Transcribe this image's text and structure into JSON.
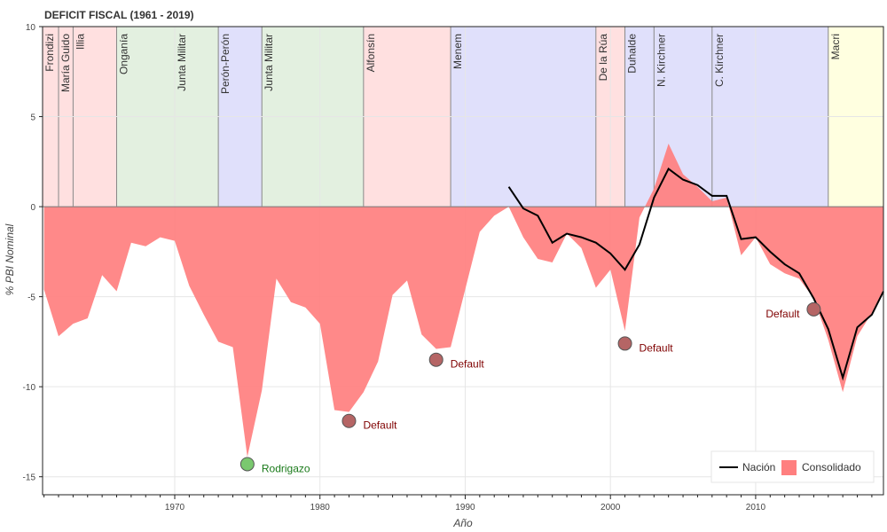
{
  "chart_data": {
    "type": "area",
    "title": "DEFICIT FISCAL (1961 - 2019)",
    "xlabel": "Año",
    "ylabel": "% PBI Nominal",
    "xlim": [
      1960.9,
      2018.8
    ],
    "ylim": [
      -16,
      10
    ],
    "xticks": [
      1970,
      1980,
      1990,
      2000,
      2010
    ],
    "yticks": [
      10,
      5,
      0,
      -5,
      -10,
      -15
    ],
    "grid": true,
    "legend_position": "bottom-right",
    "colors": {
      "consolidado": "#ff7f7f",
      "nacion": "#000000",
      "period_red": "#ffe0e0",
      "period_green": "#e3f0e0",
      "period_blue": "#e0e0fb",
      "period_yellow": "#ffffe0",
      "default_marker": "#b56565",
      "rodrigazo_marker": "#7ac86f",
      "default_text": "#7f0000",
      "rodrigazo_text": "#1a7a1a"
    },
    "periods": [
      {
        "name": "Frondizi",
        "start": 1960.9,
        "end": 1962.0,
        "color": "red"
      },
      {
        "name": "María Guido",
        "start": 1962.0,
        "end": 1963.0,
        "color": "red"
      },
      {
        "name": "Illia",
        "start": 1963.0,
        "end": 1966.0,
        "color": "red"
      },
      {
        "name": "Onganía",
        "start": 1966.0,
        "end": 1970.0,
        "color": "green"
      },
      {
        "name": "Junta Militar",
        "start": 1970.0,
        "end": 1973.0,
        "color": "green"
      },
      {
        "name": "Perón-Perón",
        "start": 1973.0,
        "end": 1976.0,
        "color": "blue"
      },
      {
        "name": "Junta Militar",
        "start": 1976.0,
        "end": 1983.0,
        "color": "green"
      },
      {
        "name": "Alfonsín",
        "start": 1983.0,
        "end": 1989.0,
        "color": "red"
      },
      {
        "name": "Menem",
        "start": 1989.0,
        "end": 1999.0,
        "color": "blue"
      },
      {
        "name": "De la Rúa",
        "start": 1999.0,
        "end": 2001.0,
        "color": "red"
      },
      {
        "name": "Duhalde",
        "start": 2001.0,
        "end": 2003.0,
        "color": "blue"
      },
      {
        "name": "N. Kirchner",
        "start": 2003.0,
        "end": 2007.0,
        "color": "blue"
      },
      {
        "name": "C. Kirchner",
        "start": 2007.0,
        "end": 2015.0,
        "color": "blue"
      },
      {
        "name": "Macri",
        "start": 2015.0,
        "end": 2018.8,
        "color": "yellow"
      }
    ],
    "series": [
      {
        "name": "Consolidado",
        "type": "area",
        "x": [
          1961,
          1962,
          1963,
          1964,
          1965,
          1966,
          1967,
          1968,
          1969,
          1970,
          1971,
          1972,
          1973,
          1974,
          1975,
          1976,
          1977,
          1978,
          1979,
          1980,
          1981,
          1982,
          1983,
          1984,
          1985,
          1986,
          1987,
          1988,
          1989,
          1990,
          1991,
          1992,
          1993,
          1994,
          1995,
          1996,
          1997,
          1998,
          1999,
          2000,
          2001,
          2002,
          2003,
          2004,
          2005,
          2006,
          2007,
          2008,
          2009,
          2010,
          2011,
          2012,
          2013,
          2014,
          2015,
          2016,
          2017,
          2018,
          2018.8
        ],
        "y": [
          -4.6,
          -7.2,
          -6.5,
          -6.2,
          -3.8,
          -4.7,
          -2.0,
          -2.2,
          -1.7,
          -1.9,
          -4.4,
          -6.0,
          -7.5,
          -7.8,
          -13.9,
          -10.2,
          -4.0,
          -5.3,
          -5.6,
          -6.5,
          -11.3,
          -11.4,
          -10.3,
          -8.6,
          -4.9,
          -4.1,
          -7.1,
          -7.9,
          -7.8,
          -4.6,
          -1.4,
          -0.5,
          0.0,
          -1.7,
          -2.9,
          -3.1,
          -1.5,
          -2.3,
          -4.5,
          -3.5,
          -6.9,
          -0.6,
          1.0,
          3.5,
          1.8,
          1.1,
          0.3,
          0.5,
          -2.7,
          -1.7,
          -3.2,
          -3.7,
          -4.0,
          -5.1,
          -7.4,
          -10.3,
          -7.2,
          -5.9,
          -4.6
        ]
      },
      {
        "name": "Nación",
        "type": "line",
        "x": [
          1993,
          1994,
          1995,
          1996,
          1997,
          1998,
          1999,
          2000,
          2001,
          2002,
          2003,
          2004,
          2005,
          2006,
          2007,
          2008,
          2009,
          2010,
          2011,
          2012,
          2013,
          2014,
          2015,
          2016,
          2017,
          2018,
          2018.8
        ],
        "y": [
          1.1,
          -0.1,
          -0.5,
          -2.0,
          -1.5,
          -1.7,
          -2.0,
          -2.6,
          -3.5,
          -2.1,
          0.5,
          2.1,
          1.5,
          1.2,
          0.6,
          0.6,
          -1.8,
          -1.7,
          -2.5,
          -3.2,
          -3.7,
          -5.1,
          -6.8,
          -9.5,
          -6.7,
          -6.0,
          -4.7
        ]
      }
    ],
    "annotations": [
      {
        "label": "Rodrigazo",
        "x": 1975,
        "y": -14.3,
        "kind": "rodrigazo"
      },
      {
        "label": "Default",
        "x": 1982,
        "y": -11.9,
        "kind": "default",
        "text_side": "right"
      },
      {
        "label": "Default",
        "x": 1988,
        "y": -8.5,
        "kind": "default",
        "text_side": "right"
      },
      {
        "label": "Default",
        "x": 2001,
        "y": -7.6,
        "kind": "default",
        "text_side": "right"
      },
      {
        "label": "Default",
        "x": 2014,
        "y": -5.7,
        "kind": "default",
        "text_side": "left"
      }
    ]
  }
}
